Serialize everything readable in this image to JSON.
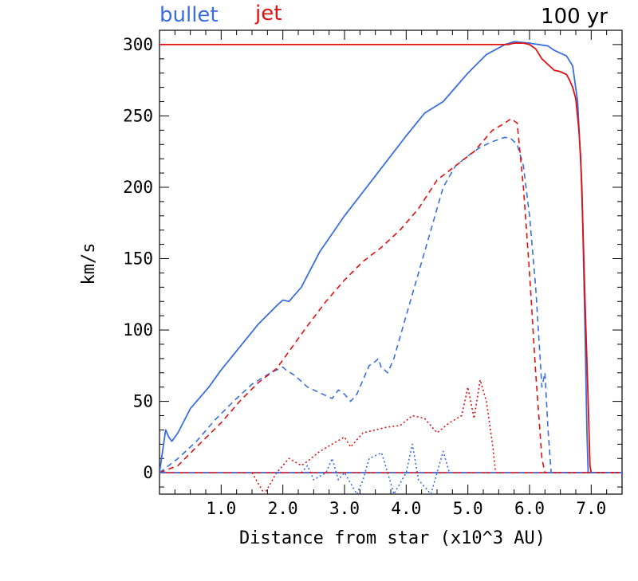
{
  "chart_data": {
    "type": "line",
    "title": "",
    "annotation": "100 yr",
    "xlabel": "Distance from star (x10^3 AU)",
    "ylabel": "km/s",
    "xlim": [
      0,
      7.5
    ],
    "ylim": [
      -15,
      310
    ],
    "xticks": [
      1.0,
      2.0,
      3.0,
      4.0,
      5.0,
      6.0,
      7.0
    ],
    "xtick_labels": [
      "1.0",
      "2.0",
      "3.0",
      "4.0",
      "5.0",
      "6.0",
      "7.0"
    ],
    "yticks": [
      0,
      50,
      100,
      150,
      200,
      250,
      300
    ],
    "ytick_labels": [
      "0",
      "50",
      "100",
      "150",
      "200",
      "250",
      "300"
    ],
    "legend": [
      {
        "label": "bullet",
        "color": "#3a6ee0"
      },
      {
        "label": "jet",
        "color": "#e01010"
      }
    ],
    "colors": {
      "bullet": "#3a6ee0",
      "jet": "#e01010"
    },
    "series": [
      {
        "color": "#3a6ee0",
        "style": "solid",
        "x": [
          0.0,
          0.1,
          0.15,
          0.2,
          0.3,
          0.5,
          0.8,
          1.0,
          1.3,
          1.6,
          1.9,
          2.0,
          2.1,
          2.3,
          2.6,
          3.0,
          3.5,
          4.0,
          4.3,
          4.6,
          4.8,
          5.0,
          5.3,
          5.6,
          5.75,
          6.0,
          6.3,
          6.4,
          6.5,
          6.6,
          6.7,
          6.78,
          6.85,
          6.9,
          6.93,
          6.95,
          6.97,
          7.0,
          7.2,
          7.5
        ],
        "y": [
          0,
          30,
          25,
          22,
          28,
          45,
          60,
          72,
          88,
          104,
          117,
          121,
          120,
          130,
          155,
          180,
          208,
          236,
          252,
          260,
          270,
          280,
          293,
          300,
          302,
          301,
          299,
          296,
          294,
          292,
          285,
          260,
          200,
          100,
          30,
          0,
          0,
          0,
          0,
          0
        ]
      },
      {
        "color": "#e01010",
        "style": "solid",
        "x": [
          0.0,
          5.65,
          5.75,
          5.9,
          6.0,
          6.1,
          6.2,
          6.4,
          6.5,
          6.6,
          6.65,
          6.7,
          6.75,
          6.8,
          6.83,
          6.86,
          6.9,
          6.95,
          6.98,
          7.0,
          7.05,
          7.2,
          7.5
        ],
        "y": [
          300,
          300,
          301,
          301,
          300,
          297,
          290,
          282,
          281,
          279,
          275,
          270,
          262,
          240,
          220,
          180,
          120,
          50,
          5,
          0,
          0,
          0,
          0
        ]
      },
      {
        "color": "#3a6ee0",
        "style": "dashed",
        "x": [
          0.0,
          0.3,
          0.6,
          0.9,
          1.2,
          1.5,
          1.8,
          2.0,
          2.05,
          2.2,
          2.4,
          2.6,
          2.8,
          2.9,
          3.0,
          3.1,
          3.2,
          3.3,
          3.4,
          3.5,
          3.55,
          3.6,
          3.65,
          3.7,
          3.8,
          3.9,
          4.0,
          4.2,
          4.4,
          4.6,
          4.8,
          5.0,
          5.2,
          5.4,
          5.6,
          5.7,
          5.8,
          5.9,
          6.0,
          6.1,
          6.2,
          6.25,
          6.3,
          6.35,
          6.4,
          6.5,
          7.5
        ],
        "y": [
          0,
          10,
          22,
          37,
          50,
          62,
          70,
          74,
          72,
          68,
          60,
          56,
          52,
          58,
          55,
          50,
          55,
          65,
          75,
          78,
          80,
          73,
          72,
          70,
          80,
          95,
          110,
          140,
          170,
          200,
          215,
          222,
          228,
          232,
          235,
          234,
          230,
          215,
          180,
          130,
          60,
          70,
          30,
          0,
          0,
          0,
          0
        ]
      },
      {
        "color": "#e01010",
        "style": "dashed",
        "x": [
          0.0,
          0.3,
          0.6,
          1.0,
          1.3,
          1.6,
          1.9,
          2.1,
          2.4,
          2.7,
          3.0,
          3.3,
          3.6,
          3.9,
          4.2,
          4.5,
          4.8,
          5.1,
          5.4,
          5.6,
          5.7,
          5.8,
          5.9,
          6.0,
          6.1,
          6.2,
          6.25,
          6.3,
          7.5
        ],
        "y": [
          0,
          5,
          18,
          35,
          50,
          63,
          73,
          85,
          103,
          120,
          135,
          148,
          158,
          170,
          185,
          205,
          215,
          225,
          240,
          245,
          248,
          245,
          200,
          140,
          70,
          10,
          0,
          0,
          0
        ]
      },
      {
        "color": "#3a6ee0",
        "style": "dotted",
        "x": [
          2.3,
          2.4,
          2.5,
          2.7,
          2.8,
          2.9,
          3.0,
          3.2,
          3.3,
          3.4,
          3.6,
          3.7,
          3.8,
          4.0,
          4.1,
          4.2,
          4.4,
          4.5,
          4.6,
          4.7
        ],
        "y": [
          0,
          5,
          -5,
          0,
          10,
          -5,
          0,
          -15,
          -5,
          10,
          14,
          0,
          -15,
          0,
          20,
          -5,
          -15,
          0,
          15,
          0
        ]
      },
      {
        "color": "#e01010",
        "style": "dotted",
        "x": [
          1.5,
          1.7,
          1.9,
          2.0,
          2.1,
          2.3,
          2.4,
          2.6,
          2.8,
          3.0,
          3.1,
          3.3,
          3.5,
          3.7,
          3.9,
          4.1,
          4.3,
          4.5,
          4.7,
          4.9,
          5.0,
          5.1,
          5.2,
          5.3,
          5.4,
          5.45
        ],
        "y": [
          0,
          -15,
          0,
          5,
          10,
          5,
          8,
          15,
          20,
          25,
          18,
          28,
          30,
          32,
          33,
          40,
          38,
          28,
          35,
          40,
          60,
          38,
          65,
          50,
          20,
          0
        ]
      },
      {
        "color": "#e01010",
        "style": "solid",
        "x": [
          0.0,
          7.5
        ],
        "y": [
          0,
          0
        ]
      },
      {
        "color": "#3a6ee0",
        "style": "dashdot",
        "x": [
          0.0,
          7.5
        ],
        "y": [
          0,
          0
        ]
      }
    ]
  }
}
